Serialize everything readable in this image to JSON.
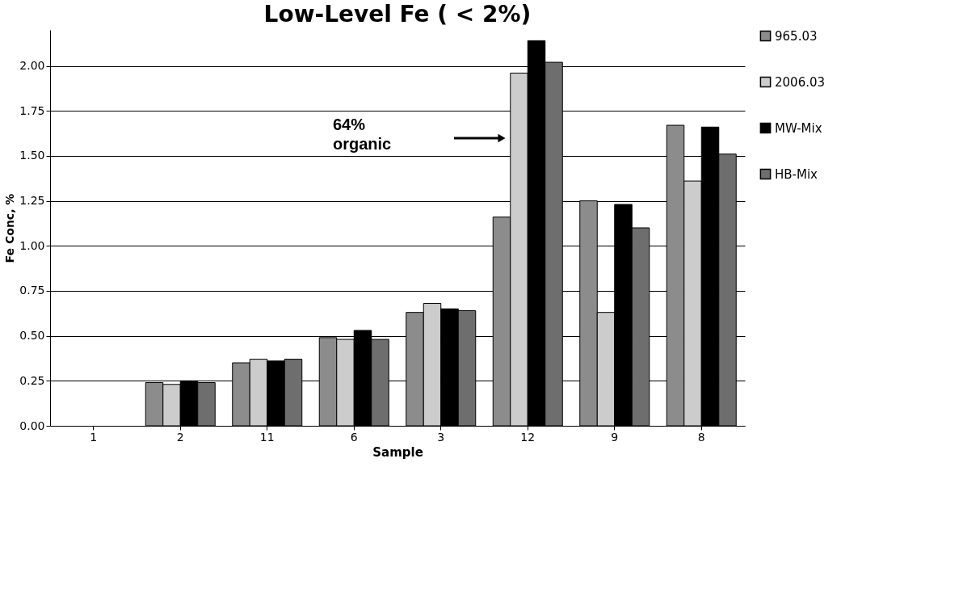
{
  "chart_data": {
    "type": "bar",
    "title": "Low-Level Fe ( < 2%)",
    "xlabel": "Sample",
    "ylabel": "Fe Conc, %",
    "categories": [
      "1",
      "2",
      "11",
      "6",
      "3",
      "12",
      "9",
      "8"
    ],
    "series": [
      {
        "name": "965.03",
        "color": "#8c8c8c",
        "values": [
          null,
          0.24,
          0.35,
          0.49,
          0.63,
          1.16,
          1.25,
          1.67
        ]
      },
      {
        "name": "2006.03",
        "color": "#cccccc",
        "values": [
          null,
          0.23,
          0.37,
          0.48,
          0.68,
          1.96,
          0.63,
          1.36
        ]
      },
      {
        "name": "MW-Mix",
        "color": "#000000",
        "values": [
          null,
          0.25,
          0.36,
          0.53,
          0.65,
          2.14,
          1.23,
          1.66
        ]
      },
      {
        "name": "HB-Mix",
        "color": "#6e6e6e",
        "values": [
          null,
          0.24,
          0.37,
          0.48,
          0.64,
          2.02,
          1.1,
          1.51
        ]
      }
    ],
    "ylim": [
      0,
      2.2
    ],
    "yticks": [
      {
        "value": 0,
        "label": "0.00"
      },
      {
        "value": 0.25,
        "label": "0.25"
      },
      {
        "value": 0.5,
        "label": "0.50"
      },
      {
        "value": 0.75,
        "label": "0.75"
      },
      {
        "value": 1,
        "label": "1.00"
      },
      {
        "value": 1.25,
        "label": "1.25"
      },
      {
        "value": 1.5,
        "label": "1.50"
      },
      {
        "value": 1.75,
        "label": "1.75"
      },
      {
        "value": 2,
        "label": "2.00"
      }
    ],
    "grid": "y",
    "legend": "right",
    "annotations": [
      "64%\norganic"
    ]
  }
}
